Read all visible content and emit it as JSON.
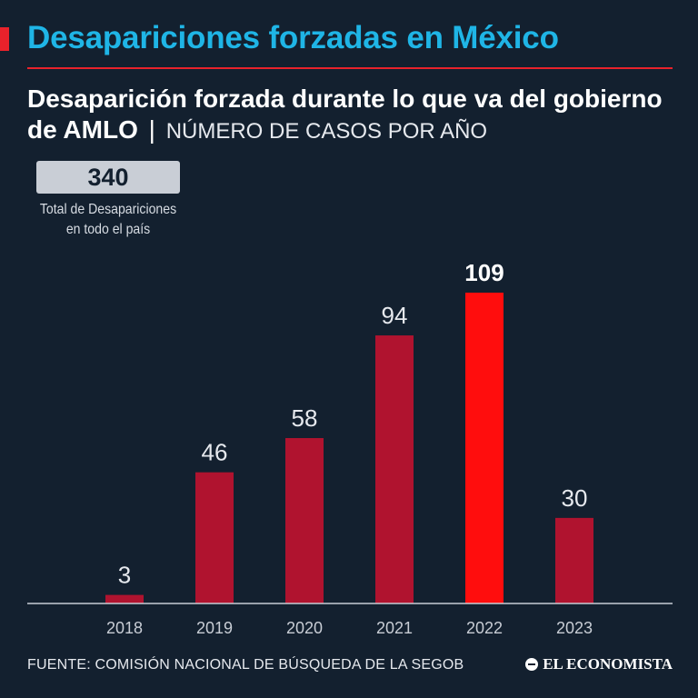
{
  "header": {
    "title": "Desapariciones forzadas en México",
    "subtitle_bold": "Desaparición forzada durante lo que va del gobierno de AMLO",
    "subtitle_separator": "|",
    "subtitle_light": "NÚMERO DE CASOS POR AÑO"
  },
  "summary": {
    "total_value": "340",
    "total_label": "Total de Desapariciones en todo el país"
  },
  "chart_data": {
    "type": "bar",
    "title": "Desaparición forzada durante lo que va del gobierno de AMLO",
    "subtitle": "NÚMERO DE CASOS POR AÑO",
    "categories": [
      "2018",
      "2019",
      "2020",
      "2021",
      "2022",
      "2023"
    ],
    "values": [
      3,
      46,
      58,
      94,
      109,
      30
    ],
    "highlight_category": "2022",
    "xlabel": "",
    "ylabel": "",
    "ylim": [
      0,
      109
    ],
    "grid": false
  },
  "colors": {
    "bar": "#b0132f",
    "bar_highlight": "#ff0d0d",
    "value_label": "#e6e9ee",
    "axis": "#c8cdd5",
    "background": "#13202f"
  },
  "footer": {
    "source": "FUENTE: COMISIÓN NACIONAL DE BÚSQUEDA DE LA SEGOB",
    "brand": "EL ECONOMISTA"
  }
}
